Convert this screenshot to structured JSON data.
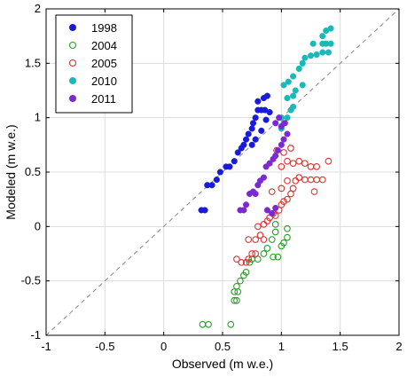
{
  "chart_data": {
    "type": "scatter",
    "title": "",
    "xlabel": "Observed (m w.e.)",
    "ylabel": "Modeled (m w.e.)",
    "xlim": [
      -1,
      2
    ],
    "ylim": [
      -1,
      2
    ],
    "xticks": [
      -1,
      -0.5,
      0,
      0.5,
      1,
      1.5,
      2
    ],
    "yticks": [
      -1,
      -0.5,
      0,
      0.5,
      1,
      1.5,
      2
    ],
    "xtick_labels": [
      "-1",
      "-0.5",
      "0",
      "0.5",
      "1",
      "1.5",
      "2"
    ],
    "ytick_labels": [
      "-1",
      "-0.5",
      "0",
      "0.5",
      "1",
      "1.5",
      "2"
    ],
    "grid": true,
    "reference_line": {
      "style": "dashed",
      "color": "#888888",
      "from": [
        -1,
        -1
      ],
      "to": [
        2,
        2
      ]
    },
    "legend_position": "top-left",
    "series": [
      {
        "name": "1998",
        "marker": "filled",
        "color": "#1a1adb",
        "points": [
          [
            0.32,
            0.15
          ],
          [
            0.35,
            0.15
          ],
          [
            0.37,
            0.38
          ],
          [
            0.41,
            0.38
          ],
          [
            0.45,
            0.43
          ],
          [
            0.48,
            0.5
          ],
          [
            0.53,
            0.55
          ],
          [
            0.56,
            0.55
          ],
          [
            0.6,
            0.6
          ],
          [
            0.63,
            0.68
          ],
          [
            0.66,
            0.72
          ],
          [
            0.68,
            0.75
          ],
          [
            0.7,
            0.8
          ],
          [
            0.72,
            0.85
          ],
          [
            0.75,
            0.9
          ],
          [
            0.76,
            0.95
          ],
          [
            0.78,
            1.0
          ],
          [
            0.8,
            1.07
          ],
          [
            0.83,
            1.07
          ],
          [
            0.86,
            1.07
          ],
          [
            0.8,
            1.15
          ],
          [
            0.85,
            1.18
          ],
          [
            0.88,
            1.2
          ],
          [
            0.87,
            0.98
          ],
          [
            0.9,
            1.05
          ],
          [
            0.83,
            0.88
          ],
          [
            0.78,
            0.8
          ],
          [
            0.75,
            0.75
          ]
        ]
      },
      {
        "name": "2004",
        "marker": "open",
        "color": "#2a9a2a",
        "points": [
          [
            0.33,
            -0.9
          ],
          [
            0.38,
            -0.9
          ],
          [
            0.57,
            -0.9
          ],
          [
            0.6,
            -0.68
          ],
          [
            0.62,
            -0.68
          ],
          [
            0.6,
            -0.6
          ],
          [
            0.63,
            -0.6
          ],
          [
            0.62,
            -0.55
          ],
          [
            0.65,
            -0.5
          ],
          [
            0.68,
            -0.45
          ],
          [
            0.7,
            -0.42
          ],
          [
            0.73,
            -0.33
          ],
          [
            0.75,
            -0.3
          ],
          [
            0.8,
            -0.3
          ],
          [
            0.85,
            -0.25
          ],
          [
            0.88,
            -0.2
          ],
          [
            0.92,
            -0.12
          ],
          [
            0.95,
            -0.05
          ],
          [
            0.93,
            -0.28
          ],
          [
            0.97,
            -0.28
          ],
          [
            1.0,
            -0.18
          ],
          [
            1.02,
            -0.15
          ],
          [
            1.05,
            -0.1
          ],
          [
            1.05,
            -0.02
          ],
          [
            0.95,
            0.02
          ]
        ]
      },
      {
        "name": "2005",
        "marker": "open",
        "color": "#e03030",
        "points": [
          [
            0.62,
            -0.3
          ],
          [
            0.66,
            -0.33
          ],
          [
            0.7,
            -0.33
          ],
          [
            0.72,
            -0.3
          ],
          [
            0.75,
            -0.25
          ],
          [
            0.78,
            -0.25
          ],
          [
            0.72,
            -0.12
          ],
          [
            0.78,
            -0.12
          ],
          [
            0.82,
            -0.08
          ],
          [
            0.85,
            -0.12
          ],
          [
            0.8,
            0.0
          ],
          [
            0.85,
            0.02
          ],
          [
            0.9,
            0.08
          ],
          [
            0.93,
            0.12
          ],
          [
            0.95,
            0.1
          ],
          [
            0.98,
            0.15
          ],
          [
            1.0,
            0.2
          ],
          [
            1.02,
            0.23
          ],
          [
            1.05,
            0.25
          ],
          [
            1.08,
            0.3
          ],
          [
            1.1,
            0.35
          ],
          [
            1.12,
            0.42
          ],
          [
            1.15,
            0.45
          ],
          [
            1.2,
            0.43
          ],
          [
            1.25,
            0.43
          ],
          [
            1.3,
            0.43
          ],
          [
            1.35,
            0.43
          ],
          [
            1.28,
            0.32
          ],
          [
            1.05,
            0.42
          ],
          [
            1.0,
            0.55
          ],
          [
            1.05,
            0.6
          ],
          [
            1.1,
            0.58
          ],
          [
            1.15,
            0.6
          ],
          [
            1.2,
            0.58
          ],
          [
            1.25,
            0.55
          ],
          [
            1.3,
            0.55
          ],
          [
            1.4,
            0.6
          ],
          [
            1.02,
            0.68
          ],
          [
            1.08,
            0.72
          ],
          [
            0.96,
            0.7
          ],
          [
            1.0,
            0.35
          ],
          [
            0.92,
            0.32
          ],
          [
            0.88,
            0.05
          ]
        ]
      },
      {
        "name": "2010",
        "marker": "filled",
        "color": "#1ab8b8",
        "points": [
          [
            1.0,
            0.9
          ],
          [
            1.02,
            0.95
          ],
          [
            1.05,
            1.0
          ],
          [
            1.08,
            1.07
          ],
          [
            1.1,
            1.1
          ],
          [
            1.05,
            1.18
          ],
          [
            1.1,
            1.2
          ],
          [
            1.02,
            1.3
          ],
          [
            1.06,
            1.33
          ],
          [
            1.1,
            1.38
          ],
          [
            1.15,
            1.45
          ],
          [
            1.18,
            1.5
          ],
          [
            1.2,
            1.55
          ],
          [
            1.25,
            1.57
          ],
          [
            1.3,
            1.58
          ],
          [
            1.35,
            1.6
          ],
          [
            1.4,
            1.6
          ],
          [
            1.27,
            1.68
          ],
          [
            1.35,
            1.68
          ],
          [
            1.38,
            1.68
          ],
          [
            1.42,
            1.68
          ],
          [
            1.35,
            1.75
          ],
          [
            1.38,
            1.8
          ],
          [
            1.42,
            1.82
          ],
          [
            1.12,
            1.25
          ],
          [
            1.18,
            1.3
          ],
          [
            1.0,
            1.0
          ]
        ]
      },
      {
        "name": "2011",
        "marker": "filled",
        "color": "#7a2ad0",
        "points": [
          [
            0.65,
            0.15
          ],
          [
            0.68,
            0.15
          ],
          [
            0.7,
            0.2
          ],
          [
            0.73,
            0.3
          ],
          [
            0.76,
            0.32
          ],
          [
            0.78,
            0.3
          ],
          [
            0.8,
            0.38
          ],
          [
            0.82,
            0.42
          ],
          [
            0.85,
            0.45
          ],
          [
            0.87,
            0.55
          ],
          [
            0.9,
            0.58
          ],
          [
            0.93,
            0.62
          ],
          [
            0.95,
            0.65
          ],
          [
            0.97,
            0.7
          ],
          [
            1.0,
            0.75
          ],
          [
            1.02,
            0.8
          ],
          [
            1.05,
            0.85
          ],
          [
            1.0,
            0.92
          ],
          [
            1.03,
            0.95
          ],
          [
            0.95,
            0.95
          ],
          [
            0.98,
            1.0
          ],
          [
            0.88,
            0.15
          ],
          [
            0.92,
            0.12
          ],
          [
            0.95,
            0.17
          ]
        ]
      }
    ]
  }
}
